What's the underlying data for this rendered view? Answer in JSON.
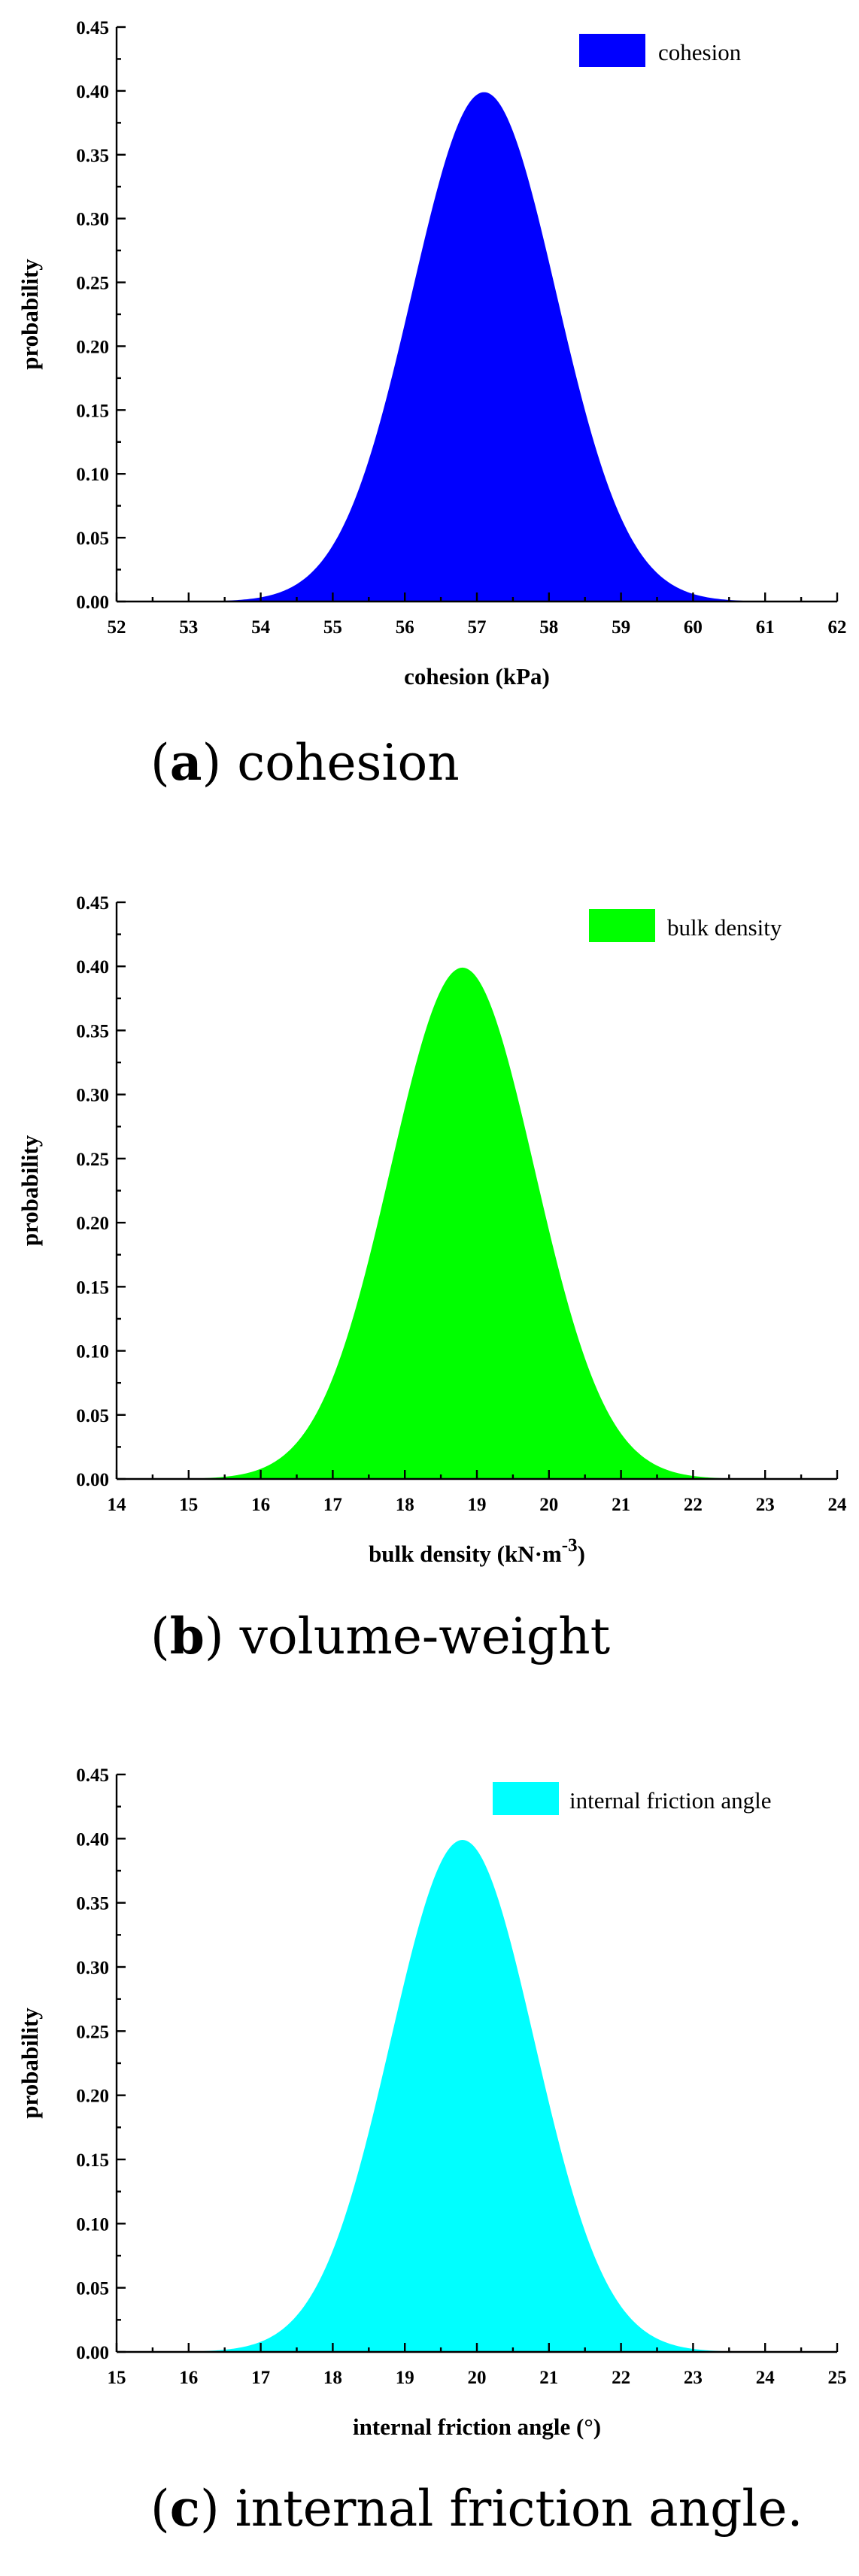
{
  "chart_data": [
    {
      "type": "area",
      "ylabel": "probability",
      "xlabel": "cohesion (kPa)",
      "xlabel_parts": [
        "cohesion (kPa)"
      ],
      "xlim": [
        52,
        62
      ],
      "ylim": [
        0,
        0.45
      ],
      "x_ticks": [
        "52",
        "53",
        "54",
        "55",
        "56",
        "57",
        "58",
        "59",
        "60",
        "61",
        "62"
      ],
      "y_ticks": [
        "0.00",
        "0.05",
        "0.10",
        "0.15",
        "0.20",
        "0.25",
        "0.30",
        "0.35",
        "0.40",
        "0.45"
      ],
      "series": [
        {
          "name": "cohesion",
          "color": "#0000ff",
          "distribution": "normal",
          "mean": 57.1,
          "std": 1.0,
          "peak": 0.399
        }
      ],
      "legend_position": "top-right",
      "grid": false,
      "caption": {
        "open": "(",
        "letter": "a",
        "close": ")",
        "text": " cohesion"
      }
    },
    {
      "type": "area",
      "ylabel": "probability",
      "xlabel": "bulk density (kN·m-3)",
      "xlabel_parts": [
        "bulk density (kN·m",
        "-3",
        ")"
      ],
      "xlim": [
        14,
        24
      ],
      "ylim": [
        0,
        0.45
      ],
      "x_ticks": [
        "14",
        "15",
        "16",
        "17",
        "18",
        "19",
        "20",
        "21",
        "22",
        "23",
        "24"
      ],
      "y_ticks": [
        "0.00",
        "0.05",
        "0.10",
        "0.15",
        "0.20",
        "0.25",
        "0.30",
        "0.35",
        "0.40",
        "0.45"
      ],
      "series": [
        {
          "name": "bulk density",
          "color": "#00ff00",
          "distribution": "normal",
          "mean": 18.8,
          "std": 1.0,
          "peak": 0.399
        }
      ],
      "legend_position": "top-right",
      "grid": false,
      "caption": {
        "open": "(",
        "letter": "b",
        "close": ")",
        "text": " volume-weight"
      }
    },
    {
      "type": "area",
      "ylabel": "probability",
      "xlabel": "internal friction angle (°)",
      "xlabel_parts": [
        "internal friction angle (°)"
      ],
      "xlim": [
        15,
        25
      ],
      "ylim": [
        0,
        0.45
      ],
      "x_ticks": [
        "15",
        "16",
        "17",
        "18",
        "19",
        "20",
        "21",
        "22",
        "23",
        "24",
        "25"
      ],
      "y_ticks": [
        "0.00",
        "0.05",
        "0.10",
        "0.15",
        "0.20",
        "0.25",
        "0.30",
        "0.35",
        "0.40",
        "0.45"
      ],
      "series": [
        {
          "name": "internal friction angle",
          "color": "#00ffff",
          "distribution": "normal",
          "mean": 19.8,
          "std": 1.0,
          "peak": 0.399
        }
      ],
      "legend_position": "top-right",
      "grid": false,
      "caption": {
        "open": "(",
        "letter": "c",
        "close": ")",
        "text": " internal friction angle."
      }
    }
  ]
}
